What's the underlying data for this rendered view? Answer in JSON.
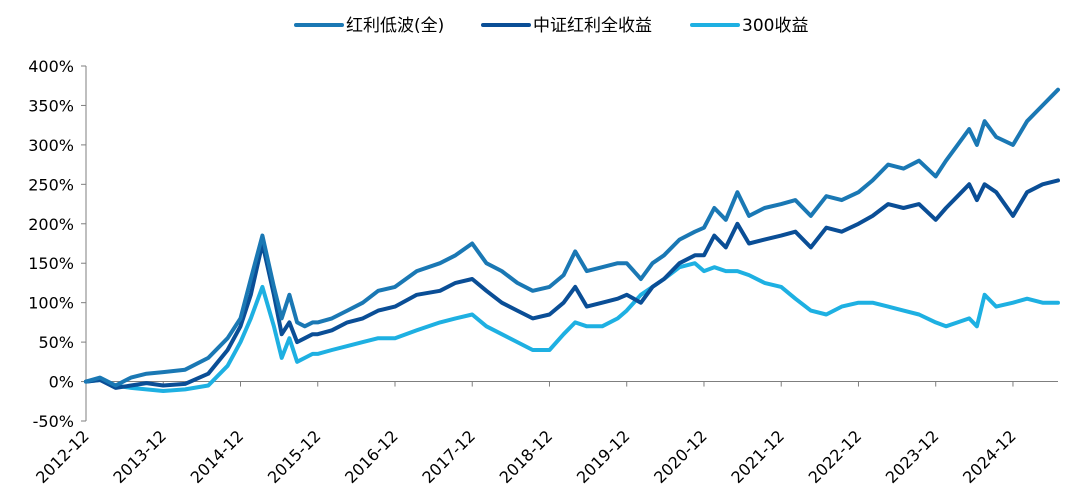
{
  "chart_data": {
    "type": "line",
    "title": "",
    "xlabel": "",
    "ylabel": "",
    "y_unit": "%",
    "ylim": [
      -50,
      400
    ],
    "yticks": [
      -50,
      0,
      50,
      100,
      150,
      200,
      250,
      300,
      350,
      400
    ],
    "ytick_labels": [
      "-50%",
      "0%",
      "50%",
      "100%",
      "150%",
      "200%",
      "250%",
      "300%",
      "350%",
      "400%"
    ],
    "xlim": [
      2012.917,
      2025.5
    ],
    "x_tick_labels": [
      "2012-12",
      "2013-12",
      "2014-12",
      "2015-12",
      "2016-12",
      "2017-12",
      "2018-12",
      "2019-12",
      "2020-12",
      "2021-12",
      "2022-12",
      "2023-12",
      "2024-12"
    ],
    "x_tick_values": [
      2012.917,
      2013.917,
      2014.917,
      2015.917,
      2016.917,
      2017.917,
      2018.917,
      2019.917,
      2020.917,
      2021.917,
      2022.917,
      2023.917,
      2024.917
    ],
    "legend_position": "top",
    "grid": false,
    "series": [
      {
        "name": "红利低波(全)",
        "color": "#1a78b4",
        "x": [
          2012.917,
          2013.1,
          2013.3,
          2013.5,
          2013.7,
          2013.917,
          2014.2,
          2014.5,
          2014.75,
          2014.917,
          2015.05,
          2015.2,
          2015.35,
          2015.45,
          2015.55,
          2015.65,
          2015.75,
          2015.85,
          2015.917,
          2016.1,
          2016.3,
          2016.5,
          2016.7,
          2016.917,
          2017.2,
          2017.5,
          2017.7,
          2017.917,
          2018.1,
          2018.3,
          2018.5,
          2018.7,
          2018.917,
          2019.1,
          2019.25,
          2019.4,
          2019.6,
          2019.8,
          2019.917,
          2020.1,
          2020.25,
          2020.4,
          2020.6,
          2020.8,
          2020.917,
          2021.05,
          2021.2,
          2021.35,
          2021.5,
          2021.7,
          2021.917,
          2022.1,
          2022.3,
          2022.5,
          2022.7,
          2022.917,
          2023.1,
          2023.3,
          2023.5,
          2023.7,
          2023.917,
          2024.05,
          2024.2,
          2024.35,
          2024.45,
          2024.55,
          2024.7,
          2024.917,
          2025.1,
          2025.3,
          2025.5
        ],
        "values": [
          0,
          5,
          -5,
          5,
          10,
          12,
          15,
          30,
          55,
          80,
          130,
          185,
          120,
          80,
          110,
          75,
          70,
          75,
          75,
          80,
          90,
          100,
          115,
          120,
          140,
          150,
          160,
          175,
          150,
          140,
          125,
          115,
          120,
          135,
          165,
          140,
          145,
          150,
          150,
          130,
          150,
          160,
          180,
          190,
          195,
          220,
          205,
          240,
          210,
          220,
          225,
          230,
          210,
          235,
          230,
          240,
          255,
          275,
          270,
          280,
          260,
          280,
          300,
          320,
          300,
          330,
          310,
          300,
          330,
          350,
          370
        ]
      },
      {
        "name": "中证红利全收益",
        "color": "#0a4e96",
        "x": [
          2012.917,
          2013.1,
          2013.3,
          2013.5,
          2013.7,
          2013.917,
          2014.2,
          2014.5,
          2014.75,
          2014.917,
          2015.05,
          2015.2,
          2015.35,
          2015.45,
          2015.55,
          2015.65,
          2015.75,
          2015.85,
          2015.917,
          2016.1,
          2016.3,
          2016.5,
          2016.7,
          2016.917,
          2017.2,
          2017.5,
          2017.7,
          2017.917,
          2018.1,
          2018.3,
          2018.5,
          2018.7,
          2018.917,
          2019.1,
          2019.25,
          2019.4,
          2019.6,
          2019.8,
          2019.917,
          2020.1,
          2020.25,
          2020.4,
          2020.6,
          2020.8,
          2020.917,
          2021.05,
          2021.2,
          2021.35,
          2021.5,
          2021.7,
          2021.917,
          2022.1,
          2022.3,
          2022.5,
          2022.7,
          2022.917,
          2023.1,
          2023.3,
          2023.5,
          2023.7,
          2023.917,
          2024.05,
          2024.2,
          2024.35,
          2024.45,
          2024.55,
          2024.7,
          2024.917,
          2025.1,
          2025.3,
          2025.5
        ],
        "values": [
          0,
          2,
          -8,
          -5,
          -2,
          -5,
          -3,
          10,
          40,
          70,
          110,
          175,
          110,
          60,
          75,
          50,
          55,
          60,
          60,
          65,
          75,
          80,
          90,
          95,
          110,
          115,
          125,
          130,
          115,
          100,
          90,
          80,
          85,
          100,
          120,
          95,
          100,
          105,
          110,
          100,
          120,
          130,
          150,
          160,
          160,
          185,
          170,
          200,
          175,
          180,
          185,
          190,
          170,
          195,
          190,
          200,
          210,
          225,
          220,
          225,
          205,
          220,
          235,
          250,
          230,
          250,
          240,
          210,
          240,
          250,
          255
        ]
      },
      {
        "name": "300收益",
        "color": "#1eb0e2",
        "x": [
          2012.917,
          2013.1,
          2013.3,
          2013.5,
          2013.7,
          2013.917,
          2014.2,
          2014.5,
          2014.75,
          2014.917,
          2015.05,
          2015.2,
          2015.35,
          2015.45,
          2015.55,
          2015.65,
          2015.75,
          2015.85,
          2015.917,
          2016.1,
          2016.3,
          2016.5,
          2016.7,
          2016.917,
          2017.2,
          2017.5,
          2017.7,
          2017.917,
          2018.1,
          2018.3,
          2018.5,
          2018.7,
          2018.917,
          2019.1,
          2019.25,
          2019.4,
          2019.6,
          2019.8,
          2019.917,
          2020.1,
          2020.25,
          2020.4,
          2020.6,
          2020.8,
          2020.917,
          2021.05,
          2021.2,
          2021.35,
          2021.5,
          2021.7,
          2021.917,
          2022.1,
          2022.3,
          2022.5,
          2022.7,
          2022.917,
          2023.1,
          2023.3,
          2023.5,
          2023.7,
          2023.917,
          2024.05,
          2024.2,
          2024.35,
          2024.45,
          2024.55,
          2024.7,
          2024.917,
          2025.1,
          2025.3,
          2025.5
        ],
        "values": [
          0,
          2,
          -5,
          -8,
          -10,
          -12,
          -10,
          -5,
          20,
          50,
          80,
          120,
          70,
          30,
          55,
          25,
          30,
          35,
          35,
          40,
          45,
          50,
          55,
          55,
          65,
          75,
          80,
          85,
          70,
          60,
          50,
          40,
          40,
          60,
          75,
          70,
          70,
          80,
          90,
          110,
          120,
          130,
          145,
          150,
          140,
          145,
          140,
          140,
          135,
          125,
          120,
          105,
          90,
          85,
          95,
          100,
          100,
          95,
          90,
          85,
          75,
          70,
          75,
          80,
          70,
          110,
          95,
          100,
          105,
          100,
          100
        ]
      }
    ]
  }
}
